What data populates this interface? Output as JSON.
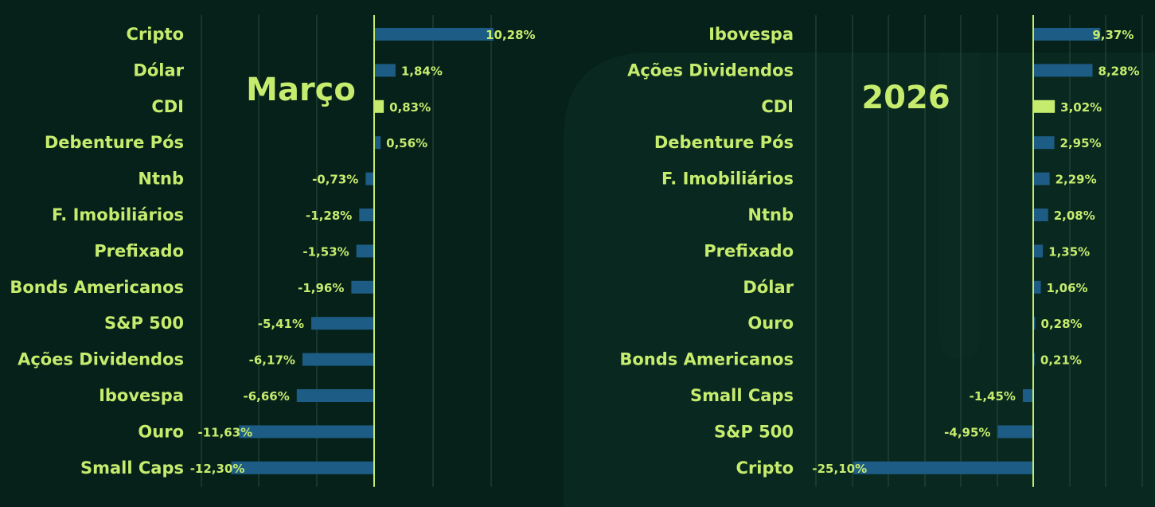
{
  "colors": {
    "background": "#05211a",
    "bar": "#1d5c84",
    "highlight": "#c6ec6e",
    "text": "#c6ec6e",
    "grid": "#2b4a3f"
  },
  "chart_data": [
    {
      "type": "bar",
      "orientation": "horizontal",
      "title": "Março",
      "highlight_category": "CDI",
      "xlim": [
        -30,
        20
      ],
      "grid": true,
      "categories": [
        "Cripto",
        "Dólar",
        "CDI",
        "Debenture Pós",
        "Ntnb",
        "F. Imobiliários",
        "Prefixado",
        "Bonds Americanos",
        "S&P 500",
        "Ações Dividendos",
        "Ibovespa",
        "Ouro",
        "Small Caps"
      ],
      "values": [
        10.28,
        1.84,
        0.83,
        0.56,
        -0.73,
        -1.28,
        -1.53,
        -1.96,
        -5.41,
        -6.17,
        -6.66,
        -11.63,
        -12.3
      ],
      "labels": [
        "10,28%",
        "1,84%",
        "0,83%",
        "0,56%",
        "-0,73%",
        "-1,28%",
        "-1,53%",
        "-1,96%",
        "-5,41%",
        "-6,17%",
        "-6,66%",
        "-11,63%",
        "-12,30%"
      ]
    },
    {
      "type": "bar",
      "orientation": "horizontal",
      "title": "2026",
      "highlight_category": "CDI",
      "xlim": [
        -30,
        20
      ],
      "grid": true,
      "categories": [
        "Ibovespa",
        "Ações Dividendos",
        "CDI",
        "Debenture Pós",
        "F. Imobiliários",
        "Ntnb",
        "Prefixado",
        "Dólar",
        "Ouro",
        "Bonds Americanos",
        "Small Caps",
        "S&P 500",
        "Cripto"
      ],
      "values": [
        9.37,
        8.28,
        3.02,
        2.95,
        2.29,
        2.08,
        1.35,
        1.06,
        0.28,
        0.21,
        -1.45,
        -4.95,
        -25.1
      ],
      "labels": [
        "9,37%",
        "8,28%",
        "3,02%",
        "2,95%",
        "2,29%",
        "2,08%",
        "1,35%",
        "1,06%",
        "0,28%",
        "0,21%",
        "-1,45%",
        "-4,95%",
        "-25,10%"
      ]
    }
  ]
}
